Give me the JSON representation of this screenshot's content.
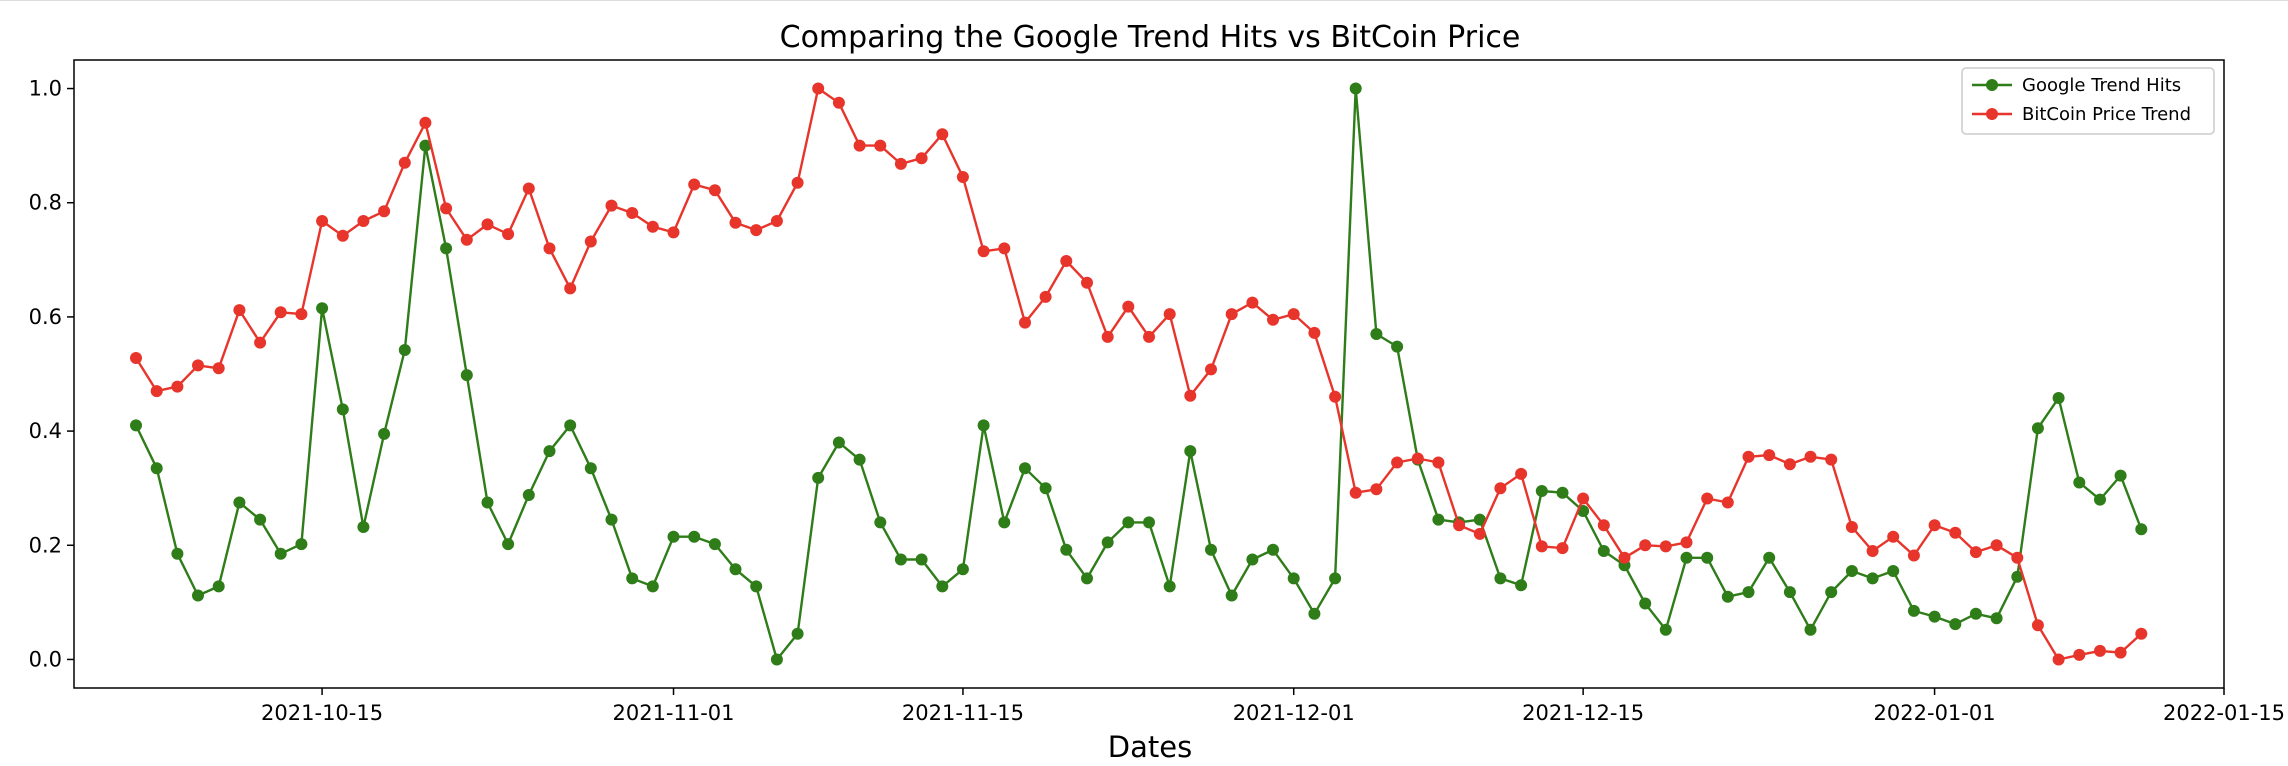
{
  "chart_data": {
    "type": "line",
    "title": "Comparing the Google Trend Hits vs BitCoin Price",
    "xlabel": "Dates",
    "ylabel": "",
    "x_start_date": "2021-10-06",
    "x_labels": [
      "2021-10-15",
      "2021-11-01",
      "2021-11-15",
      "2021-12-01",
      "2021-12-15",
      "2022-01-01",
      "2022-01-15"
    ],
    "xlim": [
      "2021-10-03",
      "2022-01-15"
    ],
    "ylim": [
      -0.05,
      1.05
    ],
    "y_ticks": [
      "0.0",
      "0.2",
      "0.4",
      "0.6",
      "0.8",
      "1.0"
    ],
    "legend_position": "top-right",
    "grid": false,
    "series": [
      {
        "name": "Google Trend Hits",
        "color": "#2e7d19",
        "values": [
          0.41,
          0.335,
          0.185,
          0.112,
          0.128,
          0.275,
          0.245,
          0.185,
          0.202,
          0.615,
          0.438,
          0.232,
          0.395,
          0.542,
          0.9,
          0.72,
          0.498,
          0.275,
          0.202,
          0.288,
          0.365,
          0.41,
          0.335,
          0.245,
          0.142,
          0.128,
          0.215,
          0.215,
          0.202,
          0.158,
          0.128,
          0.0,
          0.045,
          0.318,
          0.38,
          0.35,
          0.24,
          0.175,
          0.175,
          0.128,
          0.158,
          0.41,
          0.24,
          0.335,
          0.3,
          0.192,
          0.142,
          0.205,
          0.24,
          0.24,
          0.128,
          0.365,
          0.192,
          0.112,
          0.175,
          0.192,
          0.142,
          0.08,
          0.142,
          1.0,
          0.57,
          0.548,
          0.35,
          0.245,
          0.24,
          0.245,
          0.142,
          0.13,
          0.295,
          0.292,
          0.26,
          0.19,
          0.165,
          0.098,
          0.052,
          0.178,
          0.178,
          0.11,
          0.118,
          0.178,
          0.118,
          0.052,
          0.118,
          0.155,
          0.142,
          0.155,
          0.085,
          0.075,
          0.062,
          0.08,
          0.072,
          0.145,
          0.405,
          0.458,
          0.31,
          0.28,
          0.322,
          0.228
        ]
      },
      {
        "name": "BitCoin Price Trend",
        "color": "#e8352c",
        "values": [
          0.528,
          0.47,
          0.478,
          0.515,
          0.51,
          0.612,
          0.555,
          0.608,
          0.605,
          0.768,
          0.742,
          0.768,
          0.785,
          0.87,
          0.94,
          0.79,
          0.735,
          0.762,
          0.745,
          0.825,
          0.72,
          0.65,
          0.732,
          0.795,
          0.782,
          0.758,
          0.748,
          0.832,
          0.822,
          0.765,
          0.752,
          0.768,
          0.835,
          1.0,
          0.975,
          0.9,
          0.9,
          0.868,
          0.878,
          0.92,
          0.845,
          0.715,
          0.72,
          0.59,
          0.635,
          0.698,
          0.66,
          0.565,
          0.618,
          0.565,
          0.605,
          0.462,
          0.508,
          0.605,
          0.625,
          0.595,
          0.605,
          0.572,
          0.46,
          0.292,
          0.298,
          0.345,
          0.352,
          0.345,
          0.235,
          0.22,
          0.3,
          0.325,
          0.198,
          0.195,
          0.282,
          0.235,
          0.178,
          0.2,
          0.198,
          0.205,
          0.282,
          0.275,
          0.355,
          0.358,
          0.342,
          0.355,
          0.35,
          0.232,
          0.19,
          0.215,
          0.182,
          0.235,
          0.222,
          0.188,
          0.2,
          0.178,
          0.06,
          0.0,
          0.008,
          0.015,
          0.012,
          0.045
        ]
      }
    ]
  }
}
